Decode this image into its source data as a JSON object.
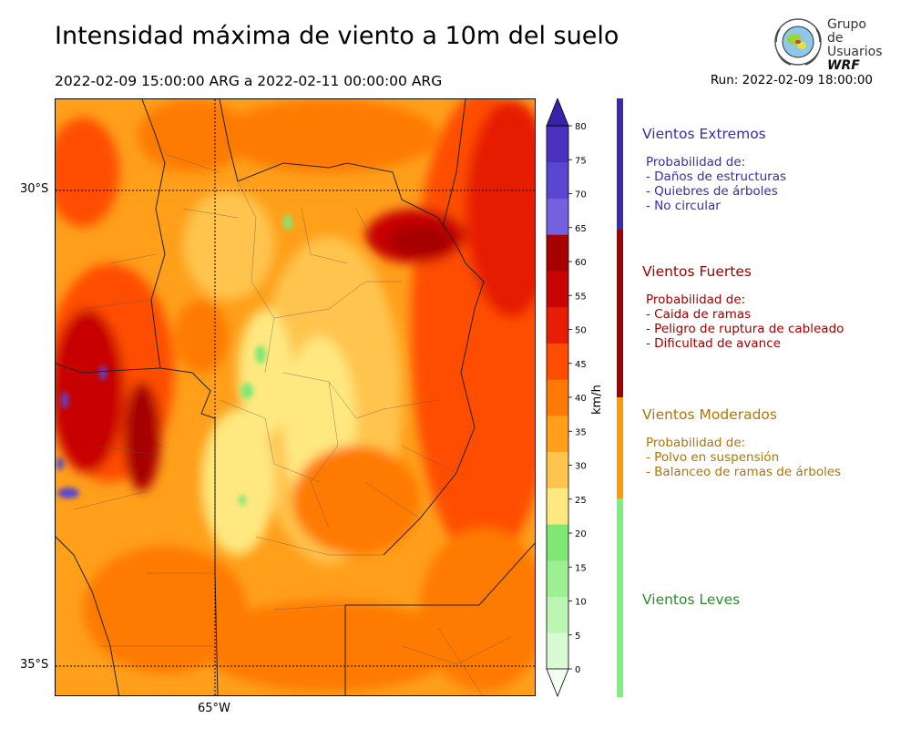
{
  "title": "Intensidad máxima de viento a 10m del suelo",
  "subtitle": "2022-02-09 15:00:00 ARG  a  2022-02-11 00:00:00 ARG",
  "run": "Run: 2022-02-09 18:00:00",
  "logo": {
    "line1": "Grupo de",
    "line2": "Usuarios",
    "line3": "WRF",
    "icon": "globe-logo-icon"
  },
  "map": {
    "lat_labels": [
      "30°S",
      "35°S"
    ],
    "lon_labels": [
      "65°W"
    ]
  },
  "colorbar": {
    "unit": "km/h",
    "ticks": [
      "0",
      "5",
      "10",
      "15",
      "20",
      "25",
      "30",
      "35",
      "40",
      "45",
      "50",
      "55",
      "60",
      "65",
      "70",
      "75",
      "80"
    ],
    "colors": [
      "#f2fff2",
      "#d9fbd3",
      "#bdf5b4",
      "#9cef92",
      "#7fe874",
      "#ffe880",
      "#ffc44d",
      "#ff9f1a",
      "#ff7a05",
      "#ff4d00",
      "#e61e05",
      "#c80505",
      "#a60000",
      "#7560e0",
      "#5b47cf",
      "#4a30bf",
      "#3a22a8"
    ]
  },
  "categories": [
    {
      "heading": "Vientos Extremos",
      "color": "#3a2ab0",
      "lines": [
        "Probabilidad de:",
        "- Daños de estructuras",
        "- Quiebres de árboles",
        "- No circular"
      ]
    },
    {
      "heading": "Vientos Fuertes",
      "color": "#a00000",
      "lines": [
        "Probabilidad de:",
        "- Caida de ramas",
        "- Peligro de ruptura de cableado",
        "- Dificultad de avance"
      ]
    },
    {
      "heading": "Vientos Moderados",
      "color": "#b37400",
      "lines": [
        "Probabilidad de:",
        "- Polvo en suspensión",
        "- Balanceo de ramas de árboles"
      ]
    },
    {
      "heading": "Vientos Leves",
      "color": "#2e8b2e",
      "lines": []
    }
  ],
  "legend_bar_colors": [
    "#3a2ab0",
    "#a00000",
    "#ff9a00",
    "#7cf07c"
  ]
}
